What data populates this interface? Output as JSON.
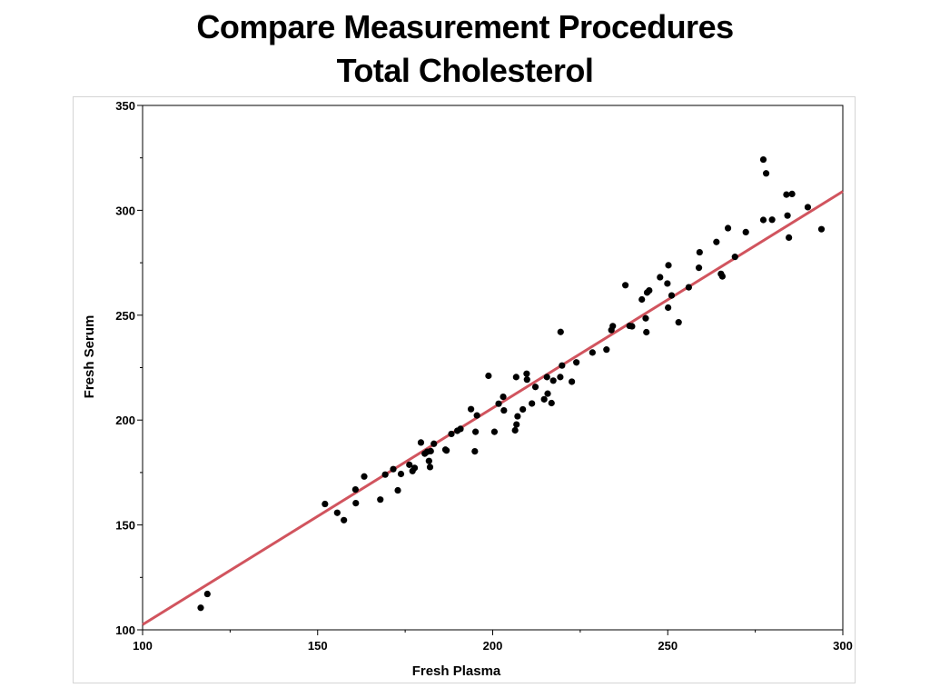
{
  "slide": {
    "title_line1": "Compare Measurement Procedures",
    "title_line2": "Total Cholesterol"
  },
  "chart_data": {
    "type": "scatter",
    "title": "",
    "xlabel": "Fresh Plasma",
    "ylabel": "Fresh Serum",
    "xlim": [
      100,
      300
    ],
    "ylim": [
      100,
      350
    ],
    "xticks": [
      100,
      150,
      200,
      250,
      300
    ],
    "yticks": [
      100,
      150,
      200,
      250,
      300,
      350
    ],
    "grid": false,
    "marker_color": "#000000",
    "line_color": "#d1545e",
    "fit_line": {
      "x": [
        100,
        300
      ],
      "y": [
        102.5,
        309
      ]
    },
    "points": [
      [
        116.6,
        110.5
      ],
      [
        118.5,
        117.1
      ],
      [
        152.1,
        160.0
      ],
      [
        155.6,
        155.8
      ],
      [
        157.5,
        152.3
      ],
      [
        160.8,
        166.9
      ],
      [
        160.9,
        160.4
      ],
      [
        163.3,
        173.1
      ],
      [
        167.9,
        162.1
      ],
      [
        169.3,
        174.0
      ],
      [
        171.6,
        176.6
      ],
      [
        172.9,
        166.5
      ],
      [
        173.8,
        174.3
      ],
      [
        176.2,
        178.7
      ],
      [
        177.1,
        175.7
      ],
      [
        177.7,
        177.2
      ],
      [
        179.5,
        189.3
      ],
      [
        180.6,
        184.0
      ],
      [
        181.3,
        184.9
      ],
      [
        181.8,
        180.5
      ],
      [
        182.1,
        177.6
      ],
      [
        182.3,
        185.2
      ],
      [
        183.2,
        188.7
      ],
      [
        186.5,
        185.9
      ],
      [
        186.8,
        185.5
      ],
      [
        188.2,
        193.4
      ],
      [
        189.9,
        194.9
      ],
      [
        190.8,
        195.8
      ],
      [
        193.8,
        205.2
      ],
      [
        194.9,
        185.1
      ],
      [
        195.1,
        194.4
      ],
      [
        195.5,
        202.2
      ],
      [
        198.8,
        221.1
      ],
      [
        200.5,
        194.4
      ],
      [
        201.7,
        207.8
      ],
      [
        203.0,
        211.1
      ],
      [
        203.2,
        204.6
      ],
      [
        206.4,
        195.1
      ],
      [
        206.7,
        220.5
      ],
      [
        206.8,
        197.9
      ],
      [
        207.1,
        201.8
      ],
      [
        208.6,
        205.1
      ],
      [
        209.7,
        222.1
      ],
      [
        209.8,
        219.3
      ],
      [
        211.2,
        207.9
      ],
      [
        212.2,
        215.8
      ],
      [
        214.7,
        209.9
      ],
      [
        215.5,
        220.5
      ],
      [
        215.7,
        212.6
      ],
      [
        216.8,
        208.1
      ],
      [
        217.3,
        218.8
      ],
      [
        219.3,
        220.5
      ],
      [
        219.4,
        242.0
      ],
      [
        219.8,
        226.0
      ],
      [
        222.6,
        218.3
      ],
      [
        223.9,
        227.5
      ],
      [
        228.5,
        232.2
      ],
      [
        232.5,
        233.6
      ],
      [
        233.9,
        242.9
      ],
      [
        234.3,
        244.8
      ],
      [
        237.9,
        264.3
      ],
      [
        239.1,
        244.9
      ],
      [
        239.8,
        244.7
      ],
      [
        242.6,
        257.5
      ],
      [
        243.7,
        248.5
      ],
      [
        243.9,
        241.9
      ],
      [
        244.1,
        260.8
      ],
      [
        244.7,
        261.8
      ],
      [
        247.8,
        268.1
      ],
      [
        249.9,
        265.1
      ],
      [
        250.1,
        253.6
      ],
      [
        250.2,
        273.8
      ],
      [
        251.1,
        259.4
      ],
      [
        253.1,
        246.6
      ],
      [
        256.0,
        263.3
      ],
      [
        258.9,
        272.6
      ],
      [
        259.1,
        280.0
      ],
      [
        263.9,
        284.9
      ],
      [
        265.2,
        269.7
      ],
      [
        265.6,
        268.5
      ],
      [
        267.2,
        291.5
      ],
      [
        269.2,
        277.8
      ],
      [
        272.3,
        289.6
      ],
      [
        277.3,
        324.2
      ],
      [
        277.3,
        295.4
      ],
      [
        278.1,
        317.6
      ],
      [
        279.8,
        295.5
      ],
      [
        283.9,
        307.5
      ],
      [
        284.2,
        297.5
      ],
      [
        284.6,
        287.0
      ],
      [
        285.5,
        307.8
      ],
      [
        290.0,
        301.5
      ],
      [
        293.9,
        291.0
      ]
    ]
  }
}
